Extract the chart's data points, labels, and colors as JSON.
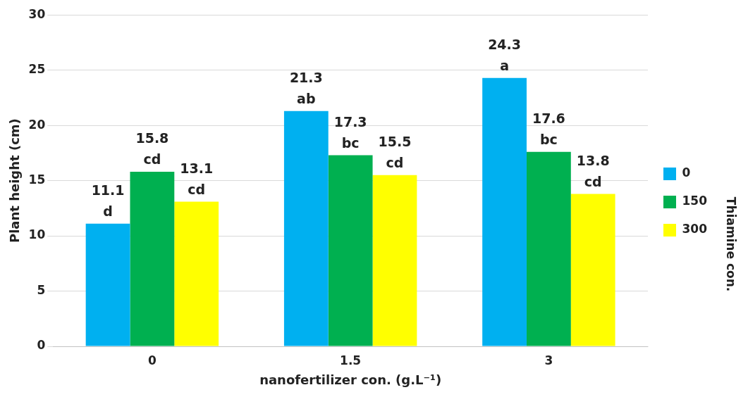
{
  "chart_data": {
    "type": "bar",
    "xlabel": "nanofertilizer con. (g.L⁻¹)",
    "ylabel": "Plant height (cm)",
    "legend_title": "Thiamine con.",
    "categories": [
      "0",
      "1.5",
      "3"
    ],
    "series": [
      {
        "name": "0",
        "color": "#00b0f0",
        "values": [
          11.1,
          21.3,
          24.3
        ],
        "value_labels": [
          "11.1\nd",
          "21.3\nab",
          "24.3\na"
        ]
      },
      {
        "name": "150",
        "color": "#00b050",
        "values": [
          15.8,
          17.3,
          17.6
        ],
        "value_labels": [
          "15.8\ncd",
          "17.3\nbc",
          "17.6\nbc"
        ]
      },
      {
        "name": "300",
        "color": "#ffff00",
        "values": [
          13.1,
          15.5,
          13.8
        ],
        "value_labels": [
          "13.1\ncd",
          "15.5\ncd",
          "13.8\ncd"
        ]
      }
    ],
    "ylim": [
      0,
      30
    ],
    "yticks": [
      0,
      5,
      10,
      15,
      20,
      25,
      30
    ],
    "grid": "y",
    "legend": "right"
  }
}
